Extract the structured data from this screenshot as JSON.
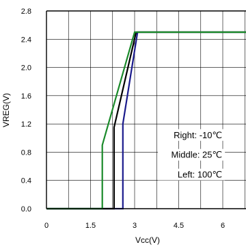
{
  "chart_data": {
    "type": "line",
    "title": "",
    "xlabel": "Vcc(V)",
    "ylabel": "VREG(V)",
    "xlim": [
      0,
      7
    ],
    "ylim": [
      0,
      2.8
    ],
    "x_ticks": [
      0,
      1.5,
      3,
      4.5,
      6
    ],
    "x_tick_labels": [
      "0",
      "1.5",
      "3",
      "4.5",
      "6"
    ],
    "y_ticks": [
      0,
      0.4,
      0.8,
      1.2,
      1.6,
      2.0,
      2.4,
      2.8
    ],
    "y_tick_labels": [
      "0.0",
      "0.4",
      "0.8",
      "1.2",
      "1.6",
      "2.0",
      "2.4",
      "2.8"
    ],
    "grid": true,
    "series": [
      {
        "name": "-10°C",
        "color": "#1a1a8c",
        "points": [
          [
            0,
            0
          ],
          [
            2.6,
            0
          ],
          [
            2.6,
            1.2
          ],
          [
            3.1,
            2.5
          ],
          [
            7,
            2.5
          ]
        ]
      },
      {
        "name": "25°C",
        "color": "#000000",
        "points": [
          [
            0,
            0
          ],
          [
            2.3,
            0
          ],
          [
            2.3,
            1.15
          ],
          [
            3.05,
            2.5
          ],
          [
            7,
            2.5
          ]
        ]
      },
      {
        "name": "100°C",
        "color": "#1a8a2a",
        "points": [
          [
            0,
            0
          ],
          [
            1.9,
            0
          ],
          [
            1.9,
            0.9
          ],
          [
            3.0,
            2.5
          ],
          [
            7,
            2.5
          ]
        ]
      }
    ],
    "annotations": [
      {
        "text": "Right: -10℃",
        "x": 5.98,
        "y": 1.0
      },
      {
        "text": "Middle: 25℃",
        "x": 5.98,
        "y": 0.72
      },
      {
        "text": "Left: 100℃",
        "x": 5.98,
        "y": 0.44
      }
    ]
  }
}
